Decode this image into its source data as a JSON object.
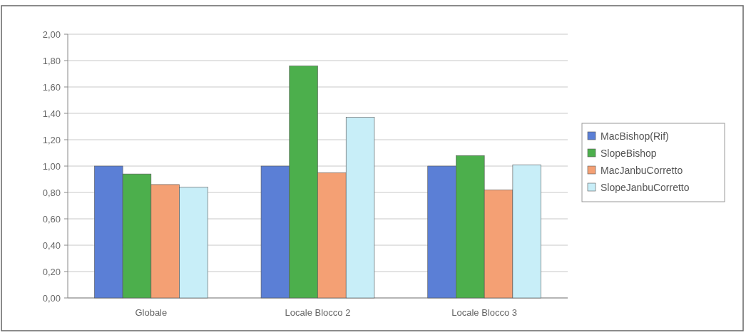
{
  "chart_data": {
    "type": "bar",
    "categories": [
      "Globale",
      "Locale Blocco 2",
      "Locale Blocco 3"
    ],
    "series": [
      {
        "name": "MacBishop(Rif)",
        "color": "#5b7fd6",
        "values": [
          1.0,
          1.0,
          1.0
        ]
      },
      {
        "name": "SlopeBishop",
        "color": "#4caf4c",
        "values": [
          0.94,
          1.76,
          1.08
        ]
      },
      {
        "name": "MacJanbuCorretto",
        "color": "#f4a074",
        "values": [
          0.86,
          0.95,
          0.82
        ]
      },
      {
        "name": "SlopeJanbuCorretto",
        "color": "#c8eef8",
        "values": [
          0.84,
          1.37,
          1.01
        ]
      }
    ],
    "ylim": [
      0,
      2
    ],
    "yticks": [
      {
        "value": 0,
        "label": "0,00"
      },
      {
        "value": 0.2,
        "label": "0,20"
      },
      {
        "value": 0.4,
        "label": "0,40"
      },
      {
        "value": 0.6,
        "label": "0,60"
      },
      {
        "value": 0.8,
        "label": "0,80"
      },
      {
        "value": 1.0,
        "label": "1,00"
      },
      {
        "value": 1.2,
        "label": "1,20"
      },
      {
        "value": 1.4,
        "label": "1,40"
      },
      {
        "value": 1.6,
        "label": "1,60"
      },
      {
        "value": 1.8,
        "label": "1,80"
      },
      {
        "value": 2.0,
        "label": "2,00"
      }
    ],
    "grid": "y",
    "legend": "right"
  }
}
